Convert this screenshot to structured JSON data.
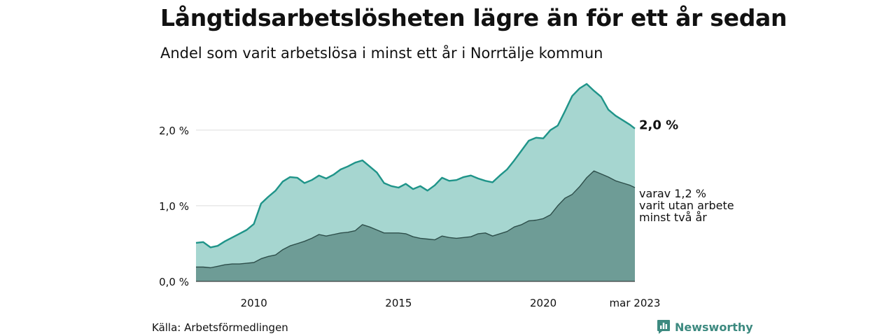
{
  "chart_data": {
    "type": "area",
    "title": "Långtidsarbetslösheten lägre än för ett år sedan",
    "subtitle": "Andel som varit arbetslösa i minst ett år i Norrtälje kommun",
    "y_unit": "%",
    "ylim": [
      0,
      2.6
    ],
    "y_ticks": [
      {
        "value": 0,
        "label": "0,0 %"
      },
      {
        "value": 1,
        "label": "1,0 %"
      },
      {
        "value": 2,
        "label": "2,0 %"
      }
    ],
    "x_ticks": [
      {
        "value": "2010-01",
        "label": "2010"
      },
      {
        "value": "2015-01",
        "label": "2015"
      },
      {
        "value": "2020-01",
        "label": "2020"
      },
      {
        "value": "2023-03",
        "label": "mar 2023"
      }
    ],
    "grid": "horizontal",
    "colors": {
      "total": "#1f9489",
      "total_fill": "#a6d6d0",
      "long": "#2d4e4a",
      "long_fill": "#6e9c96",
      "grid": "#dddddd"
    },
    "series": [
      {
        "key": "total",
        "x": [
          "2008-01",
          "2008-04",
          "2008-07",
          "2008-10",
          "2009-01",
          "2009-04",
          "2009-07",
          "2009-10",
          "2010-01",
          "2010-04",
          "2010-07",
          "2010-10",
          "2011-01",
          "2011-04",
          "2011-07",
          "2011-10",
          "2012-01",
          "2012-04",
          "2012-07",
          "2012-10",
          "2013-01",
          "2013-04",
          "2013-07",
          "2013-10",
          "2014-01",
          "2014-04",
          "2014-07",
          "2014-10",
          "2015-01",
          "2015-04",
          "2015-07",
          "2015-10",
          "2016-01",
          "2016-04",
          "2016-07",
          "2016-10",
          "2017-01",
          "2017-04",
          "2017-07",
          "2017-10",
          "2018-01",
          "2018-04",
          "2018-07",
          "2018-10",
          "2019-01",
          "2019-04",
          "2019-07",
          "2019-10",
          "2020-01",
          "2020-04",
          "2020-07",
          "2020-10",
          "2021-01",
          "2021-04",
          "2021-07",
          "2021-10",
          "2022-01",
          "2022-04",
          "2022-07",
          "2022-10",
          "2023-01",
          "2023-03"
        ],
        "values": [
          0.51,
          0.52,
          0.45,
          0.47,
          0.53,
          0.58,
          0.63,
          0.68,
          0.76,
          1.03,
          1.12,
          1.2,
          1.32,
          1.38,
          1.37,
          1.3,
          1.34,
          1.4,
          1.36,
          1.41,
          1.48,
          1.52,
          1.57,
          1.6,
          1.52,
          1.44,
          1.3,
          1.26,
          1.24,
          1.29,
          1.22,
          1.26,
          1.2,
          1.27,
          1.37,
          1.33,
          1.34,
          1.38,
          1.4,
          1.36,
          1.33,
          1.31,
          1.4,
          1.48,
          1.6,
          1.73,
          1.86,
          1.9,
          1.89,
          2.0,
          2.06,
          2.25,
          2.45,
          2.55,
          2.61,
          2.52,
          2.44,
          2.27,
          2.19,
          2.13,
          2.07,
          2.02
        ]
      },
      {
        "key": "long",
        "x": [
          "2008-01",
          "2008-04",
          "2008-07",
          "2008-10",
          "2009-01",
          "2009-04",
          "2009-07",
          "2009-10",
          "2010-01",
          "2010-04",
          "2010-07",
          "2010-10",
          "2011-01",
          "2011-04",
          "2011-07",
          "2011-10",
          "2012-01",
          "2012-04",
          "2012-07",
          "2012-10",
          "2013-01",
          "2013-04",
          "2013-07",
          "2013-10",
          "2014-01",
          "2014-04",
          "2014-07",
          "2014-10",
          "2015-01",
          "2015-04",
          "2015-07",
          "2015-10",
          "2016-01",
          "2016-04",
          "2016-07",
          "2016-10",
          "2017-01",
          "2017-04",
          "2017-07",
          "2017-10",
          "2018-01",
          "2018-04",
          "2018-07",
          "2018-10",
          "2019-01",
          "2019-04",
          "2019-07",
          "2019-10",
          "2020-01",
          "2020-04",
          "2020-07",
          "2020-10",
          "2021-01",
          "2021-04",
          "2021-07",
          "2021-10",
          "2022-01",
          "2022-04",
          "2022-07",
          "2022-10",
          "2023-01",
          "2023-03"
        ],
        "values": [
          0.19,
          0.19,
          0.18,
          0.2,
          0.22,
          0.23,
          0.23,
          0.24,
          0.25,
          0.3,
          0.33,
          0.35,
          0.42,
          0.47,
          0.5,
          0.53,
          0.57,
          0.62,
          0.6,
          0.62,
          0.64,
          0.65,
          0.67,
          0.75,
          0.72,
          0.68,
          0.64,
          0.64,
          0.64,
          0.63,
          0.59,
          0.57,
          0.56,
          0.55,
          0.6,
          0.58,
          0.57,
          0.58,
          0.59,
          0.63,
          0.64,
          0.6,
          0.63,
          0.66,
          0.72,
          0.75,
          0.8,
          0.81,
          0.83,
          0.88,
          1.0,
          1.1,
          1.15,
          1.25,
          1.37,
          1.46,
          1.42,
          1.38,
          1.33,
          1.3,
          1.27,
          1.24
        ]
      }
    ],
    "end_label": "2,0 %",
    "annotation": [
      "varav 1,2 %",
      "varit utan arbete",
      "minst två år"
    ]
  },
  "source": "Källa: Arbetsförmedlingen",
  "brand": {
    "name": "Newsworthy",
    "icon": "bar-chart-icon"
  }
}
